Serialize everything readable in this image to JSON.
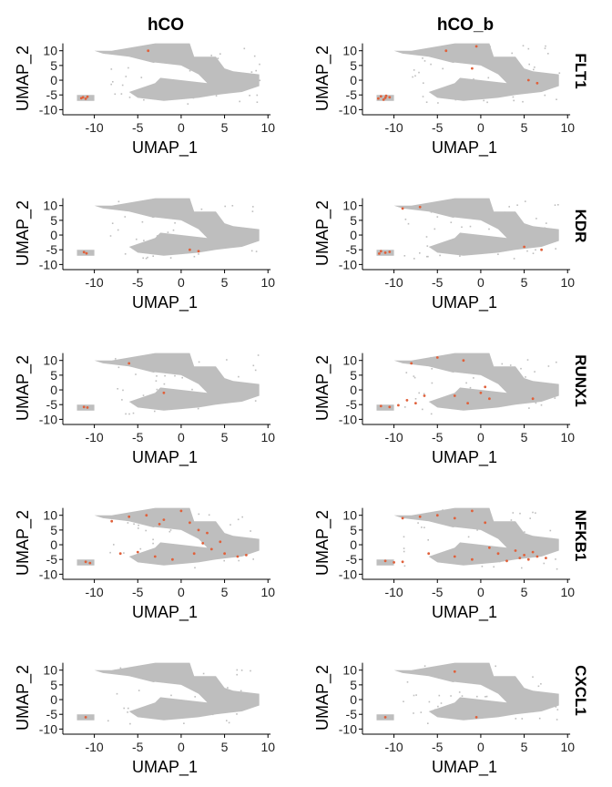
{
  "colors": {
    "background": "#bebebe",
    "expression": "#e0603a",
    "axis": "#000000"
  },
  "columns": [
    "hCO",
    "hCO_b"
  ],
  "rows": [
    "FLT1",
    "KDR",
    "RUNX1",
    "NFKB1",
    "CXCL1"
  ],
  "chart_data": {
    "type": "scatter",
    "chart_kind": "UMAP feature plot grid",
    "xlabel": "UMAP_1",
    "ylabel": "UMAP_2",
    "xlim": [
      -13,
      10.5
    ],
    "ylim": [
      -10.5,
      13
    ],
    "xticks": [
      -10,
      -5,
      0,
      5,
      10
    ],
    "yticks": [
      -10,
      -5,
      0,
      5,
      10
    ],
    "xtick_labels": [
      "-10",
      "-5",
      "0",
      "5",
      "10"
    ],
    "ytick_labels": [
      "-10",
      "-5",
      "0",
      "5",
      "10"
    ],
    "grid": false,
    "cluster_shape": {
      "upper_band": [
        [
          -8,
          10
        ],
        [
          -3,
          12.5
        ],
        [
          1,
          12.5
        ],
        [
          1.5,
          8
        ],
        [
          4,
          8
        ],
        [
          5,
          4
        ],
        [
          6,
          3
        ],
        [
          9,
          2
        ],
        [
          9,
          -2
        ],
        [
          7,
          -4
        ],
        [
          4,
          -5
        ],
        [
          2,
          -6
        ],
        [
          0,
          -6.5
        ],
        [
          -2,
          -7
        ],
        [
          -5,
          -6
        ],
        [
          -6,
          -4
        ],
        [
          -3,
          -1
        ],
        [
          -2,
          2
        ],
        [
          -2,
          5
        ],
        [
          -6,
          8
        ],
        [
          -9,
          9
        ],
        [
          -10,
          10
        ]
      ],
      "left_blob": [
        [
          -12,
          -5
        ],
        [
          -10,
          -5
        ],
        [
          -10,
          -7
        ],
        [
          -12,
          -7
        ]
      ]
    },
    "panels": [
      {
        "gene": "FLT1",
        "sample": "hCO",
        "expressing_cells": [
          [
            -11.3,
            -5.8
          ],
          [
            -11.0,
            -6.3
          ],
          [
            -10.8,
            -5.6
          ],
          [
            -11.5,
            -6.1
          ],
          [
            -3.8,
            10.0
          ]
        ]
      },
      {
        "gene": "FLT1",
        "sample": "hCO_b",
        "expressing_cells": [
          [
            -11.5,
            -5.5
          ],
          [
            -11.0,
            -6.0
          ],
          [
            -10.5,
            -5.8
          ],
          [
            -11.8,
            -6.2
          ],
          [
            -10.9,
            -5.3
          ],
          [
            -11.2,
            -6.6
          ],
          [
            -4.0,
            10.0
          ],
          [
            -0.5,
            11.5
          ],
          [
            -1.0,
            4.0
          ],
          [
            5.5,
            0.0
          ],
          [
            6.5,
            -1.0
          ]
        ]
      },
      {
        "gene": "KDR",
        "sample": "hCO",
        "expressing_cells": [
          [
            -11.2,
            -5.8
          ],
          [
            -10.9,
            -6.2
          ],
          [
            1.0,
            -5.0
          ],
          [
            2.0,
            -5.5
          ]
        ]
      },
      {
        "gene": "KDR",
        "sample": "hCO_b",
        "expressing_cells": [
          [
            -11.5,
            -5.5
          ],
          [
            -11.0,
            -6.0
          ],
          [
            -10.5,
            -5.7
          ],
          [
            -11.7,
            -6.3
          ],
          [
            -9.0,
            9.0
          ],
          [
            -7.0,
            9.5
          ],
          [
            5.0,
            -4.0
          ],
          [
            7.0,
            -5.0
          ]
        ]
      },
      {
        "gene": "RUNX1",
        "sample": "hCO",
        "expressing_cells": [
          [
            -11.2,
            -5.8
          ],
          [
            -10.8,
            -6.0
          ],
          [
            -2.0,
            -1.0
          ],
          [
            -6.0,
            9.0
          ]
        ]
      },
      {
        "gene": "RUNX1",
        "sample": "hCO_b",
        "expressing_cells": [
          [
            -11.5,
            -5.5
          ],
          [
            -10.5,
            -5.8
          ],
          [
            -9.5,
            -5.2
          ],
          [
            -8.5,
            -3.5
          ],
          [
            -7.5,
            -4.5
          ],
          [
            -6.5,
            -2.0
          ],
          [
            -3.0,
            -2.0
          ],
          [
            -1.5,
            -4.5
          ],
          [
            0.0,
            -1.0
          ],
          [
            1.0,
            -3.0
          ],
          [
            0.5,
            1.0
          ],
          [
            -2.0,
            10.0
          ],
          [
            -8.0,
            9.0
          ],
          [
            -5.0,
            11.0
          ],
          [
            6.0,
            -3.0
          ]
        ]
      },
      {
        "gene": "NFKB1",
        "sample": "hCO",
        "expressing_cells": [
          [
            -8.0,
            8.0
          ],
          [
            -6.0,
            9.5
          ],
          [
            -4.0,
            10.0
          ],
          [
            -2.0,
            8.5
          ],
          [
            0.0,
            11.5
          ],
          [
            1.0,
            7.5
          ],
          [
            2.0,
            5.0
          ],
          [
            3.0,
            4.0
          ],
          [
            -7.0,
            -3.0
          ],
          [
            -5.0,
            -2.5
          ],
          [
            -3.0,
            -4.0
          ],
          [
            -1.0,
            -5.0
          ],
          [
            1.5,
            -3.0
          ],
          [
            3.5,
            -1.5
          ],
          [
            5.0,
            -3.0
          ],
          [
            6.5,
            -4.0
          ],
          [
            7.5,
            -3.5
          ],
          [
            -11.0,
            -5.8
          ],
          [
            -10.5,
            -6.2
          ],
          [
            -2.5,
            7.0
          ],
          [
            4.5,
            1.0
          ],
          [
            2.5,
            0.5
          ]
        ]
      },
      {
        "gene": "NFKB1",
        "sample": "hCO_b",
        "expressing_cells": [
          [
            -9.0,
            9.0
          ],
          [
            -7.0,
            9.5
          ],
          [
            -5.0,
            10.0
          ],
          [
            -3.0,
            9.0
          ],
          [
            -1.0,
            11.5
          ],
          [
            0.5,
            7.5
          ],
          [
            -11.0,
            -5.5
          ],
          [
            -10.0,
            -6.0
          ],
          [
            -9.0,
            -5.8
          ],
          [
            -3.0,
            -4.0
          ],
          [
            -1.0,
            -5.0
          ],
          [
            2.0,
            -3.0
          ],
          [
            4.0,
            -2.0
          ],
          [
            4.5,
            -4.5
          ],
          [
            5.0,
            -3.5
          ],
          [
            5.5,
            -5.0
          ],
          [
            6.0,
            -2.5
          ],
          [
            6.5,
            -4.0
          ],
          [
            7.5,
            -4.5
          ],
          [
            3.0,
            -5.5
          ],
          [
            -6.0,
            -3.0
          ],
          [
            1.0,
            -1.0
          ]
        ]
      },
      {
        "gene": "CXCL1",
        "sample": "hCO",
        "expressing_cells": [
          [
            -11.0,
            -6.0
          ]
        ]
      },
      {
        "gene": "CXCL1",
        "sample": "hCO_b",
        "expressing_cells": [
          [
            -0.5,
            -6.0
          ],
          [
            -11.0,
            -6.0
          ],
          [
            -3.0,
            9.5
          ]
        ]
      }
    ]
  }
}
